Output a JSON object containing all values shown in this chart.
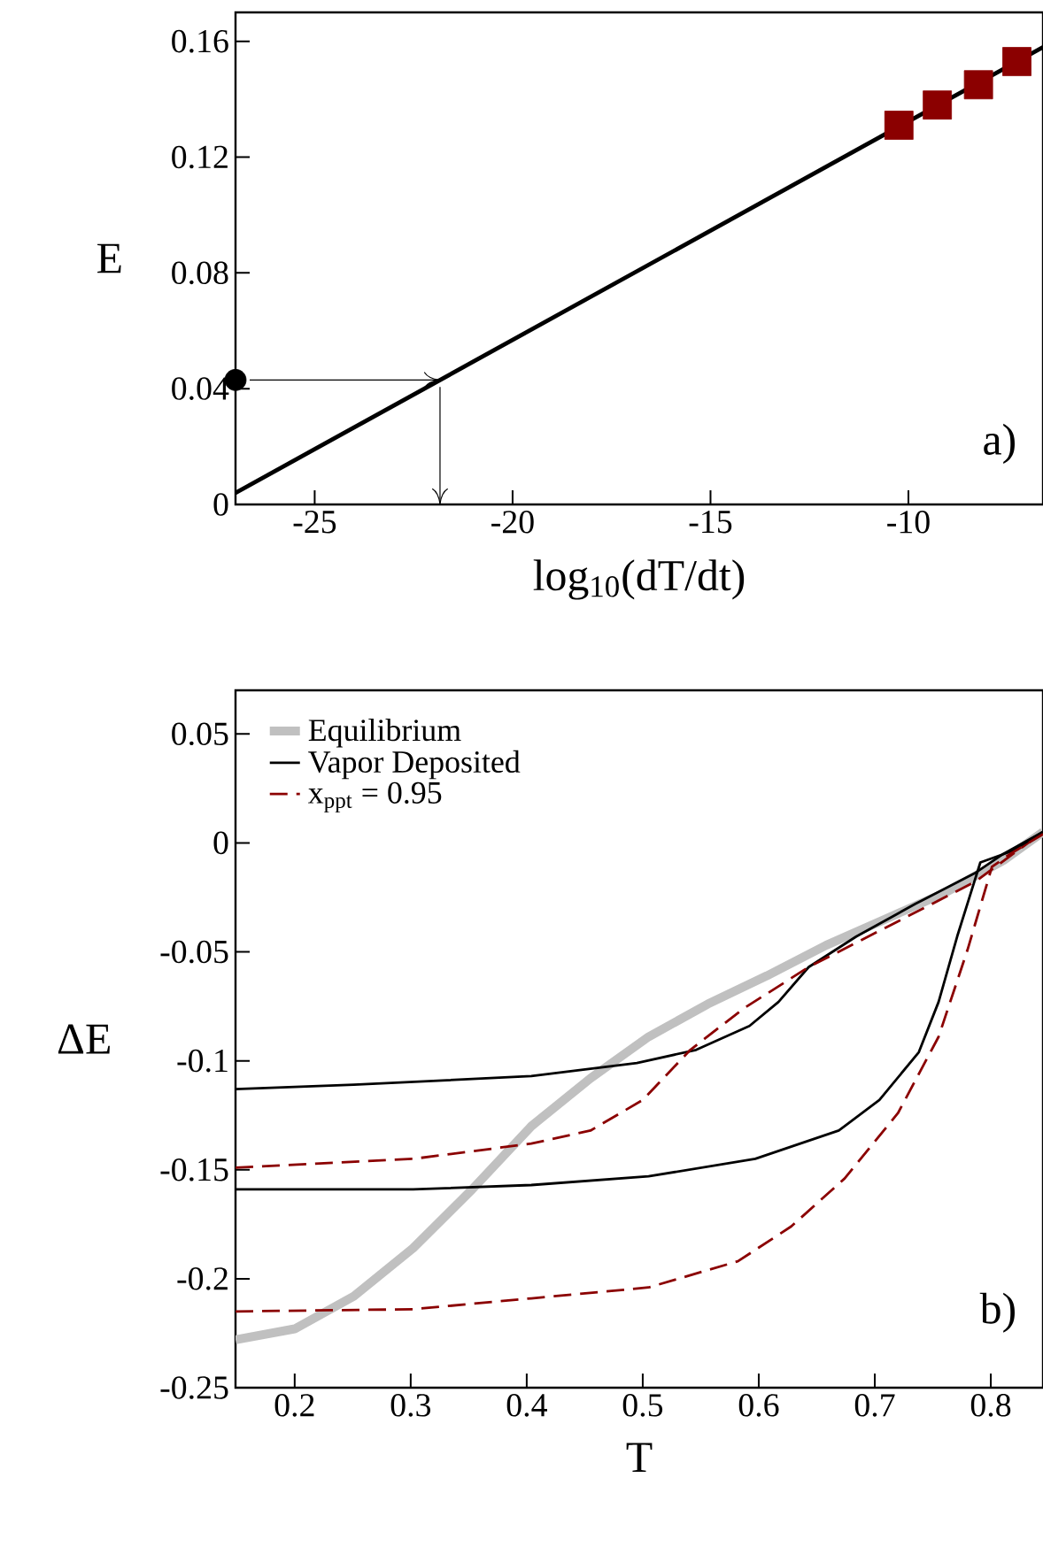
{
  "chart_data": [
    {
      "type": "line",
      "xlabel": "log$_{10}$(dT/dt)",
      "ylabel": "E",
      "annotations": [
        "a)"
      ],
      "xlim": [
        -27,
        -6.6
      ],
      "ylim": [
        0,
        0.17
      ],
      "xticks": [
        -25,
        -20,
        -15,
        -10
      ],
      "yticks": [
        0,
        0.04,
        0.08,
        0.12,
        0.16
      ],
      "series": [
        {
          "type": "line",
          "color": "#000000",
          "marker": "none",
          "x": [
            -27,
            -6.6
          ],
          "values": [
            0.004,
            0.158
          ]
        },
        {
          "type": "scatter",
          "color": "#000000",
          "marker": "circle",
          "x": [
            -27
          ],
          "values": [
            0.043
          ]
        },
        {
          "type": "scatter",
          "color": "#8b0000",
          "marker": "square",
          "x": [
            -10.24,
            -9.27,
            -8.23,
            -7.26
          ],
          "values": [
            0.131,
            0.138,
            0.145,
            0.153
          ]
        }
      ]
    },
    {
      "type": "line",
      "xlabel": "T",
      "ylabel": "ΔE",
      "annotations": [
        "b)"
      ],
      "xlim": [
        0.149,
        0.845
      ],
      "ylim": [
        -0.25,
        0.07
      ],
      "xticks": [
        0.2,
        0.3,
        0.4,
        0.5,
        0.6,
        0.7,
        0.8
      ],
      "yticks": [
        -0.25,
        -0.2,
        -0.15,
        -0.1,
        -0.05,
        0,
        0.05
      ],
      "legend": "top left",
      "line_style": "solid",
      "series": [
        {
          "name": "Equilibrium",
          "color": "#c0c0c0",
          "x": [
            0.149,
            0.2,
            0.251,
            0.302,
            0.353,
            0.404,
            0.455,
            0.505,
            0.556,
            0.607,
            0.658,
            0.709,
            0.76,
            0.811,
            0.845
          ],
          "values": [
            -0.228,
            -0.223,
            -0.208,
            -0.186,
            -0.159,
            -0.13,
            -0.108,
            -0.089,
            -0.074,
            -0.061,
            -0.047,
            -0.035,
            -0.023,
            -0.008,
            0.005
          ]
        },
        {
          "name": "Vapor Deposited",
          "color": "#000000",
          "x": [
            0.149,
            0.251,
            0.404,
            0.495,
            0.546,
            0.592,
            0.617,
            0.643,
            0.684,
            0.735,
            0.786,
            0.811,
            0.845
          ],
          "values": [
            -0.113,
            -0.111,
            -0.107,
            -0.101,
            -0.095,
            -0.084,
            -0.073,
            -0.057,
            -0.043,
            -0.028,
            -0.014,
            -0.005,
            0.005
          ]
        },
        {
          "name": "x$_{ppt}$ = 0.95",
          "color": "#8b0000",
          "line_style": "dashed",
          "x": [
            0.149,
            0.302,
            0.404,
            0.455,
            0.5,
            0.541,
            0.587,
            0.643,
            0.709,
            0.786,
            0.845
          ],
          "values": [
            -0.149,
            -0.145,
            -0.138,
            -0.132,
            -0.118,
            -0.095,
            -0.076,
            -0.057,
            -0.039,
            -0.018,
            0.005
          ]
        },
        {
          "color": "#000000",
          "x": [
            0.149,
            0.302,
            0.404,
            0.505,
            0.597,
            0.669,
            0.704,
            0.738,
            0.755,
            0.771,
            0.791,
            0.817,
            0.845
          ],
          "values": [
            -0.159,
            -0.159,
            -0.157,
            -0.153,
            -0.145,
            -0.132,
            -0.118,
            -0.096,
            -0.073,
            -0.043,
            -0.009,
            -0.004,
            0.005
          ]
        },
        {
          "color": "#8b0000",
          "line_style": "dashed",
          "x": [
            0.149,
            0.302,
            0.404,
            0.505,
            0.582,
            0.628,
            0.674,
            0.72,
            0.755,
            0.78,
            0.801,
            0.817,
            0.845
          ],
          "values": [
            -0.215,
            -0.214,
            -0.209,
            -0.204,
            -0.192,
            -0.176,
            -0.154,
            -0.124,
            -0.089,
            -0.049,
            -0.011,
            -0.005,
            0.004
          ]
        }
      ]
    }
  ]
}
